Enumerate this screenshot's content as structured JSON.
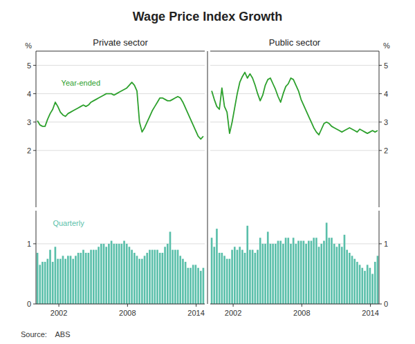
{
  "title": "Wage Price Index Growth",
  "source": "Source:    ABS",
  "chart_data": [
    {
      "type": "line",
      "title": "Private sector",
      "ylabel": "%",
      "annotation": "Year-ended",
      "color": "#2ca02c",
      "x": [
        2000.125,
        2000.3481,
        2000.5712,
        2000.7942,
        2001.0173,
        2001.2404,
        2001.4635,
        2001.6865,
        2001.9096,
        2002.1327,
        2002.3558,
        2002.5788,
        2002.8019,
        2003.025,
        2003.2481,
        2003.4712,
        2003.6942,
        2003.9173,
        2004.1404,
        2004.3635,
        2004.5865,
        2004.8096,
        2005.0327,
        2005.2558,
        2005.4788,
        2005.7019,
        2005.925,
        2006.1481,
        2006.3712,
        2006.5942,
        2006.8173,
        2007.0404,
        2007.2635,
        2007.4865,
        2007.7096,
        2007.9327,
        2008.1558,
        2008.3788,
        2008.6019,
        2008.825,
        2009.0481,
        2009.2712,
        2009.4942,
        2009.7173,
        2009.9404,
        2010.1635,
        2010.3865,
        2010.6096,
        2010.8327,
        2011.0558,
        2011.2788,
        2011.5019,
        2011.725,
        2011.9481,
        2012.1712,
        2012.3942,
        2012.6173,
        2012.8404,
        2013.0635,
        2013.2865,
        2013.5096,
        2013.7327,
        2013.9558,
        2014.1788,
        2014.4019,
        2014.625
      ],
      "values": [
        3.05,
        2.9,
        2.85,
        2.85,
        3.1,
        3.3,
        3.45,
        3.7,
        3.55,
        3.35,
        3.25,
        3.2,
        3.3,
        3.35,
        3.4,
        3.45,
        3.5,
        3.55,
        3.6,
        3.55,
        3.6,
        3.7,
        3.75,
        3.8,
        3.85,
        3.9,
        3.95,
        4.0,
        4.0,
        4.0,
        3.95,
        4.0,
        4.05,
        4.1,
        4.15,
        4.2,
        4.3,
        4.4,
        4.3,
        4.1,
        3.0,
        2.65,
        2.8,
        3.0,
        3.2,
        3.4,
        3.55,
        3.7,
        3.85,
        3.85,
        3.8,
        3.75,
        3.75,
        3.8,
        3.85,
        3.9,
        3.85,
        3.7,
        3.5,
        3.3,
        3.1,
        2.9,
        2.7,
        2.5,
        2.4,
        2.5
      ],
      "xlim": [
        2000.0,
        2014.75
      ],
      "ylim": [
        0,
        5.5
      ],
      "yticks": [
        2,
        3,
        4,
        5
      ],
      "grid": true,
      "tick_labels": "y"
    },
    {
      "type": "bar",
      "annotation": "Quarterly",
      "color": "#5abfaa",
      "x": [
        2000.125,
        2000.3481,
        2000.5712,
        2000.7942,
        2001.0173,
        2001.2404,
        2001.4635,
        2001.6865,
        2001.9096,
        2002.1327,
        2002.3558,
        2002.5788,
        2002.8019,
        2003.025,
        2003.2481,
        2003.4712,
        2003.6942,
        2003.9173,
        2004.1404,
        2004.3635,
        2004.5865,
        2004.8096,
        2005.0327,
        2005.2558,
        2005.4788,
        2005.7019,
        2005.925,
        2006.1481,
        2006.3712,
        2006.5942,
        2006.8173,
        2007.0404,
        2007.2635,
        2007.4865,
        2007.7096,
        2007.9327,
        2008.1558,
        2008.3788,
        2008.6019,
        2008.825,
        2009.0481,
        2009.2712,
        2009.4942,
        2009.7173,
        2009.9404,
        2010.1635,
        2010.3865,
        2010.6096,
        2010.8327,
        2011.0558,
        2011.2788,
        2011.5019,
        2011.725,
        2011.9481,
        2012.1712,
        2012.3942,
        2012.6173,
        2012.8404,
        2013.0635,
        2013.2865,
        2013.5096,
        2013.7327,
        2013.9558,
        2014.1788,
        2014.4019,
        2014.625
      ],
      "values": [
        0.85,
        0.65,
        0.7,
        0.7,
        0.75,
        0.9,
        0.7,
        0.95,
        0.75,
        0.75,
        0.8,
        0.75,
        0.8,
        0.8,
        0.75,
        0.8,
        0.85,
        0.85,
        0.9,
        0.85,
        0.85,
        0.9,
        0.9,
        0.9,
        0.95,
        1.0,
        1.0,
        0.95,
        1.0,
        1.05,
        1.0,
        1.0,
        1.0,
        1.0,
        1.05,
        1.0,
        0.95,
        0.9,
        0.85,
        0.8,
        0.75,
        0.75,
        0.8,
        0.85,
        0.9,
        0.9,
        0.9,
        0.9,
        0.85,
        0.85,
        0.95,
        1.0,
        1.2,
        0.9,
        0.9,
        0.9,
        0.8,
        0.75,
        0.7,
        0.6,
        0.6,
        0.65,
        0.65,
        0.6,
        0.55,
        0.6
      ],
      "xlim": [
        2000.0,
        2014.75
      ],
      "ylim": [
        0,
        1.55
      ],
      "xticks": [
        2002,
        2008,
        2014
      ],
      "yticks": [
        0,
        1
      ],
      "grid": true
    },
    {
      "type": "line",
      "title": "Public sector",
      "ylabel": "%",
      "color": "#2ca02c",
      "x": [
        2000.125,
        2000.3481,
        2000.5712,
        2000.7942,
        2001.0173,
        2001.2404,
        2001.4635,
        2001.6865,
        2001.9096,
        2002.1327,
        2002.3558,
        2002.5788,
        2002.8019,
        2003.025,
        2003.2481,
        2003.4712,
        2003.6942,
        2003.9173,
        2004.1404,
        2004.3635,
        2004.5865,
        2004.8096,
        2005.0327,
        2005.2558,
        2005.4788,
        2005.7019,
        2005.925,
        2006.1481,
        2006.3712,
        2006.5942,
        2006.8173,
        2007.0404,
        2007.2635,
        2007.4865,
        2007.7096,
        2007.9327,
        2008.1558,
        2008.3788,
        2008.6019,
        2008.825,
        2009.0481,
        2009.2712,
        2009.4942,
        2009.7173,
        2009.9404,
        2010.1635,
        2010.3865,
        2010.6096,
        2010.8327,
        2011.0558,
        2011.2788,
        2011.5019,
        2011.725,
        2011.9481,
        2012.1712,
        2012.3942,
        2012.6173,
        2012.8404,
        2013.0635,
        2013.2865,
        2013.5096,
        2013.7327,
        2013.9558,
        2014.1788,
        2014.4019,
        2014.625
      ],
      "values": [
        4.1,
        3.8,
        3.55,
        3.45,
        4.2,
        3.55,
        3.35,
        2.6,
        3.0,
        3.5,
        4.0,
        4.4,
        4.6,
        4.75,
        4.55,
        4.7,
        4.55,
        4.3,
        4.0,
        3.75,
        3.95,
        4.3,
        4.5,
        4.55,
        4.35,
        4.15,
        3.9,
        3.7,
        4.0,
        4.25,
        4.35,
        4.55,
        4.5,
        4.3,
        4.1,
        3.8,
        3.6,
        3.4,
        3.2,
        3.0,
        2.8,
        2.65,
        2.55,
        2.75,
        2.95,
        3.0,
        2.95,
        2.85,
        2.8,
        2.75,
        2.7,
        2.65,
        2.7,
        2.75,
        2.8,
        2.75,
        2.7,
        2.65,
        2.75,
        2.7,
        2.65,
        2.6,
        2.65,
        2.7,
        2.65,
        2.7
      ],
      "xlim": [
        2000.0,
        2014.75
      ],
      "ylim": [
        0,
        5.5
      ],
      "yticks": [
        2,
        3,
        4,
        5
      ],
      "grid": true,
      "tick_labels": "y"
    },
    {
      "type": "bar",
      "color": "#5abfaa",
      "x": [
        2000.125,
        2000.3481,
        2000.5712,
        2000.7942,
        2001.0173,
        2001.2404,
        2001.4635,
        2001.6865,
        2001.9096,
        2002.1327,
        2002.3558,
        2002.5788,
        2002.8019,
        2003.025,
        2003.2481,
        2003.4712,
        2003.6942,
        2003.9173,
        2004.1404,
        2004.3635,
        2004.5865,
        2004.8096,
        2005.0327,
        2005.2558,
        2005.4788,
        2005.7019,
        2005.925,
        2006.1481,
        2006.3712,
        2006.5942,
        2006.8173,
        2007.0404,
        2007.2635,
        2007.4865,
        2007.7096,
        2007.9327,
        2008.1558,
        2008.3788,
        2008.6019,
        2008.825,
        2009.0481,
        2009.2712,
        2009.4942,
        2009.7173,
        2009.9404,
        2010.1635,
        2010.3865,
        2010.6096,
        2010.8327,
        2011.0558,
        2011.2788,
        2011.5019,
        2011.725,
        2011.9481,
        2012.1712,
        2012.3942,
        2012.6173,
        2012.8404,
        2013.0635,
        2013.2865,
        2013.5096,
        2013.7327,
        2013.9558,
        2014.1788,
        2014.4019,
        2014.625
      ],
      "values": [
        1.1,
        0.95,
        1.25,
        0.85,
        0.85,
        0.8,
        0.75,
        0.75,
        0.9,
        0.95,
        0.9,
        0.95,
        0.9,
        0.85,
        1.3,
        0.9,
        0.9,
        0.85,
        0.9,
        1.1,
        1.0,
        1.0,
        1.2,
        1.0,
        1.0,
        1.0,
        1.05,
        1.05,
        1.0,
        1.1,
        1.1,
        1.0,
        1.1,
        1.0,
        1.05,
        1.05,
        1.05,
        1.0,
        1.05,
        1.05,
        1.1,
        1.1,
        0.95,
        1.0,
        1.05,
        1.35,
        1.1,
        1.1,
        1.0,
        0.95,
        1.0,
        0.95,
        1.15,
        0.9,
        0.85,
        0.8,
        0.75,
        0.7,
        0.65,
        0.6,
        0.55,
        0.65,
        0.6,
        0.5,
        0.7,
        0.8
      ],
      "xlim": [
        2000.0,
        2014.75
      ],
      "ylim": [
        0,
        1.55
      ],
      "xticks": [
        2002,
        2008,
        2014
      ],
      "yticks": [
        0,
        1
      ],
      "grid": true
    }
  ]
}
